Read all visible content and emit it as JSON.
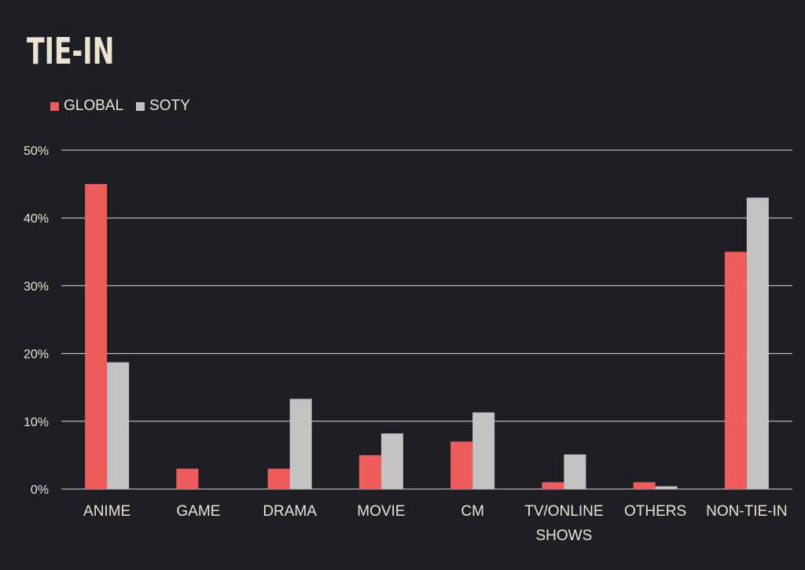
{
  "chart_data": {
    "type": "bar",
    "title": "TIE-IN",
    "categories": [
      "ANIME",
      "GAME",
      "DRAMA",
      "MOVIE",
      "CM",
      "TV/ONLINE SHOWS",
      "OTHERS",
      "NON-TIE-IN"
    ],
    "category_lines": [
      [
        "ANIME"
      ],
      [
        "GAME"
      ],
      [
        "DRAMA"
      ],
      [
        "MOVIE"
      ],
      [
        "CM"
      ],
      [
        "TV/ONLINE",
        "SHOWS"
      ],
      [
        "OTHERS"
      ],
      [
        "NON-TIE-IN"
      ]
    ],
    "series": [
      {
        "name": "GLOBAL",
        "color": "#ee5c5c",
        "values": [
          45,
          3,
          3,
          5,
          7,
          1,
          1,
          35
        ]
      },
      {
        "name": "SOTY",
        "color": "#c3c3c3",
        "values": [
          18.7,
          0,
          13.3,
          8.2,
          11.3,
          5.1,
          0.4,
          43
        ]
      }
    ],
    "ylim": [
      0,
      50
    ],
    "yticks": [
      "0%",
      "10%",
      "20%",
      "30%",
      "40%",
      "50%"
    ],
    "xlabel": "",
    "ylabel": "",
    "grid": true,
    "legend_position": "top-left"
  }
}
